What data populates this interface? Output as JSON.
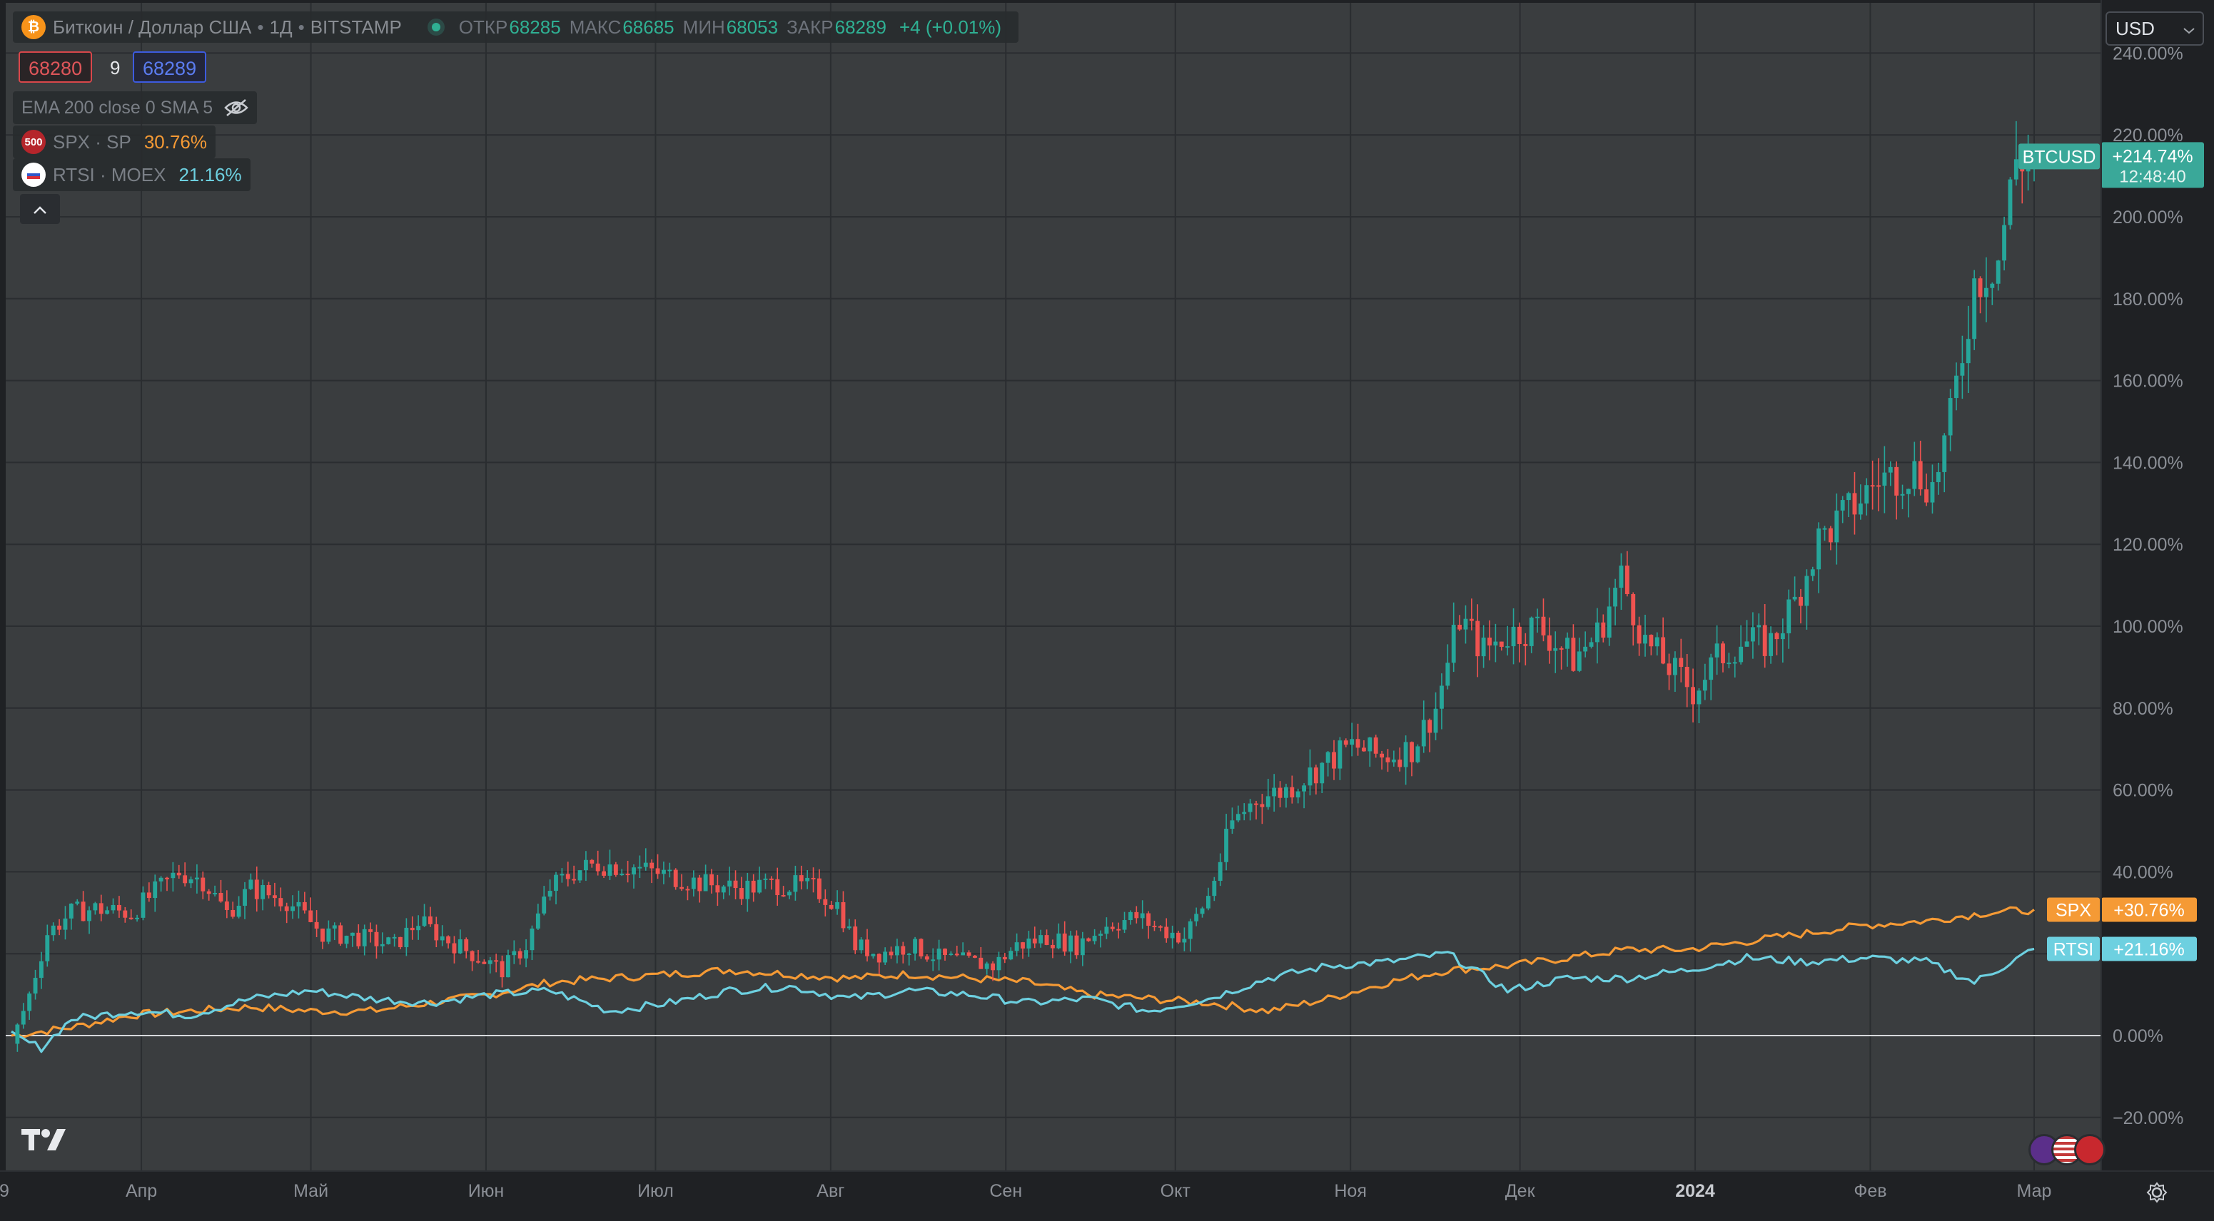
{
  "header": {
    "symbol_title": "Биткоин / Доллар США",
    "timeframe": "1Д",
    "exchange": "BITSTAMP",
    "ohlc": [
      {
        "label": "ОТКР",
        "value": "68285"
      },
      {
        "label": "МАКС",
        "value": "68685"
      },
      {
        "label": "МИН",
        "value": "68053"
      },
      {
        "label": "ЗАКР",
        "value": "68289"
      }
    ],
    "change": "+4 (+0.01%)"
  },
  "prices": {
    "bid": "68280",
    "spread": "9",
    "ask": "68289"
  },
  "indicators": {
    "ema_label": "EMA 200 close 0 SMA 5",
    "spx_label": "SPX · SP",
    "spx_value": "30.76%",
    "spx_icon": "500",
    "rtsi_label": "RTSI · MOEX",
    "rtsi_value": "21.16%"
  },
  "currency_selector": "USD",
  "collapse_icon": "chevron-up-icon",
  "colors": {
    "background": "#3a3d3f",
    "grid": "#2a2d30",
    "up": "#26a69a",
    "down": "#ef5350",
    "spx": "#f59a35",
    "rtsi": "#6dd0e0",
    "btc_label": "#3aa899"
  },
  "chart_data": {
    "type": "candlestick",
    "comparison_mode": "percent",
    "x_tick_labels": [
      "Апр",
      "Май",
      "Июн",
      "Июл",
      "Авг",
      "Сен",
      "Окт",
      "Ноя",
      "Дек",
      "2024",
      "Фев",
      "Мар"
    ],
    "x_tick_first_partial": "9",
    "y_tick_labels": [
      "240.00%",
      "220.00%",
      "200.00%",
      "180.00%",
      "160.00%",
      "140.00%",
      "120.00%",
      "100.00%",
      "80.00%",
      "60.00%",
      "40.00%",
      "20.00%",
      "0.00%",
      "−20.00%"
    ],
    "ylim": [
      -33,
      240
    ],
    "main_series": {
      "name": "BTCUSD",
      "last_value_label": "+214.74%",
      "countdown": "12:48:40",
      "keypoints": [
        [
          0,
          -2
        ],
        [
          3,
          10
        ],
        [
          6,
          25
        ],
        [
          10,
          30
        ],
        [
          14,
          31
        ],
        [
          20,
          30
        ],
        [
          28,
          40
        ],
        [
          32,
          38
        ],
        [
          36,
          30
        ],
        [
          40,
          36
        ],
        [
          46,
          33
        ],
        [
          52,
          25
        ],
        [
          58,
          24
        ],
        [
          64,
          22
        ],
        [
          68,
          28
        ],
        [
          72,
          24
        ],
        [
          77,
          20
        ],
        [
          82,
          16
        ],
        [
          86,
          22
        ],
        [
          90,
          36
        ],
        [
          94,
          40
        ],
        [
          98,
          42
        ],
        [
          104,
          41
        ],
        [
          110,
          39
        ],
        [
          116,
          37
        ],
        [
          122,
          36
        ],
        [
          128,
          37
        ],
        [
          134,
          36
        ],
        [
          138,
          32
        ],
        [
          141,
          22
        ],
        [
          145,
          20
        ],
        [
          150,
          22
        ],
        [
          155,
          19
        ],
        [
          160,
          18
        ],
        [
          164,
          17
        ],
        [
          168,
          22
        ],
        [
          173,
          24
        ],
        [
          178,
          22
        ],
        [
          183,
          27
        ],
        [
          188,
          29
        ],
        [
          192,
          26
        ],
        [
          196,
          24
        ],
        [
          200,
          34
        ],
        [
          204,
          52
        ],
        [
          208,
          58
        ],
        [
          213,
          60
        ],
        [
          218,
          65
        ],
        [
          224,
          71
        ],
        [
          229,
          68
        ],
        [
          234,
          70
        ],
        [
          238,
          80
        ],
        [
          242,
          102
        ],
        [
          246,
          94
        ],
        [
          250,
          98
        ],
        [
          255,
          100
        ],
        [
          261,
          92
        ],
        [
          265,
          98
        ],
        [
          269,
          112
        ],
        [
          273,
          96
        ],
        [
          277,
          90
        ],
        [
          281,
          84
        ],
        [
          285,
          92
        ],
        [
          289,
          96
        ],
        [
          294,
          96
        ],
        [
          298,
          106
        ],
        [
          302,
          121
        ],
        [
          307,
          128
        ],
        [
          312,
          136
        ],
        [
          318,
          138
        ],
        [
          321,
          134
        ],
        [
          324,
          150
        ],
        [
          328,
          184
        ],
        [
          332,
          190
        ],
        [
          335,
          214
        ],
        [
          338,
          214.74
        ]
      ]
    },
    "series": [
      {
        "name": "SPX",
        "color": "#f59a35",
        "last_value_label": "+30.76%",
        "keypoints": [
          [
            0,
            0
          ],
          [
            10,
            2
          ],
          [
            20,
            5
          ],
          [
            30,
            6
          ],
          [
            40,
            7
          ],
          [
            50,
            6
          ],
          [
            60,
            6
          ],
          [
            70,
            8
          ],
          [
            80,
            10
          ],
          [
            90,
            13
          ],
          [
            100,
            14
          ],
          [
            110,
            15
          ],
          [
            120,
            16
          ],
          [
            130,
            15
          ],
          [
            140,
            14
          ],
          [
            150,
            15
          ],
          [
            160,
            14
          ],
          [
            170,
            13
          ],
          [
            180,
            10
          ],
          [
            190,
            9
          ],
          [
            200,
            8
          ],
          [
            210,
            6
          ],
          [
            220,
            9
          ],
          [
            230,
            13
          ],
          [
            240,
            16
          ],
          [
            250,
            17
          ],
          [
            260,
            19
          ],
          [
            270,
            21
          ],
          [
            280,
            21
          ],
          [
            290,
            23
          ],
          [
            300,
            25
          ],
          [
            310,
            27
          ],
          [
            320,
            28
          ],
          [
            330,
            30
          ],
          [
            338,
            30.76
          ]
        ]
      },
      {
        "name": "RTSI",
        "color": "#6dd0e0",
        "last_value_label": "+21.16%",
        "keypoints": [
          [
            0,
            0
          ],
          [
            5,
            -3
          ],
          [
            10,
            4
          ],
          [
            20,
            6
          ],
          [
            30,
            5
          ],
          [
            40,
            9
          ],
          [
            50,
            11
          ],
          [
            60,
            9
          ],
          [
            70,
            8
          ],
          [
            80,
            10
          ],
          [
            90,
            11
          ],
          [
            100,
            6
          ],
          [
            110,
            8
          ],
          [
            120,
            11
          ],
          [
            130,
            12
          ],
          [
            140,
            9
          ],
          [
            150,
            11
          ],
          [
            160,
            10
          ],
          [
            170,
            8
          ],
          [
            180,
            9
          ],
          [
            190,
            6
          ],
          [
            200,
            9
          ],
          [
            210,
            14
          ],
          [
            220,
            17
          ],
          [
            230,
            18
          ],
          [
            240,
            20
          ],
          [
            250,
            11
          ],
          [
            260,
            14
          ],
          [
            270,
            14
          ],
          [
            280,
            16
          ],
          [
            290,
            19
          ],
          [
            300,
            18
          ],
          [
            310,
            19
          ],
          [
            320,
            18
          ],
          [
            328,
            13
          ],
          [
            333,
            17
          ],
          [
            338,
            21.16
          ]
        ]
      }
    ],
    "grid": true,
    "zero_line": true
  }
}
